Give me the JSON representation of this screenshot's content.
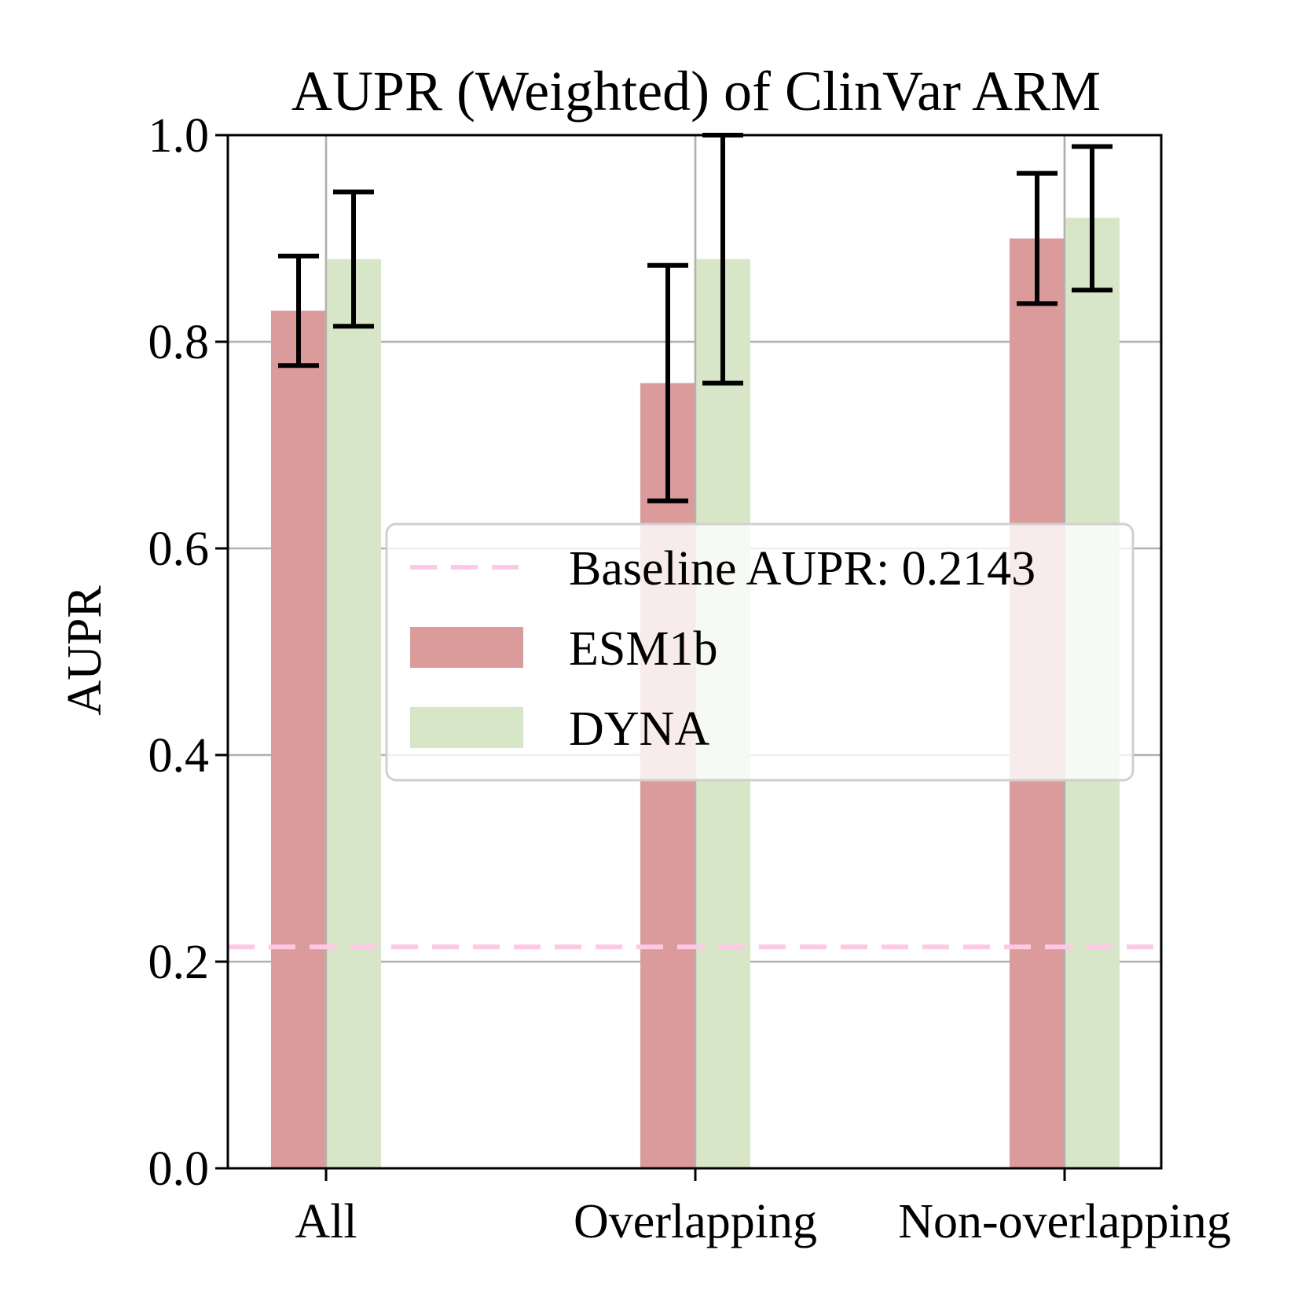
{
  "chart_data": {
    "type": "bar",
    "title": "AUPR (Weighted) of ClinVar ARM",
    "xlabel": "",
    "ylabel": "AUPR",
    "categories": [
      "All",
      "Overlapping",
      "Non-overlapping"
    ],
    "ylim": [
      0,
      1.0
    ],
    "yticks": [
      "0.0",
      "0.2",
      "0.4",
      "0.6",
      "0.8",
      "1.0"
    ],
    "grid": true,
    "legend_position": "center-right",
    "series": [
      {
        "name": "ESM1b",
        "color": "#dc9b9b",
        "values": [
          0.83,
          0.76,
          0.9
        ],
        "error_low": [
          0.777,
          0.646,
          0.837
        ],
        "error_high": [
          0.883,
          0.874,
          0.963
        ]
      },
      {
        "name": "DYNA",
        "color": "#d8e6c8",
        "values": [
          0.88,
          0.88,
          0.92
        ],
        "error_low": [
          0.815,
          0.76,
          0.85
        ],
        "error_high": [
          0.945,
          1.0,
          0.989
        ]
      }
    ],
    "baseline": {
      "label": "Baseline AUPR: 0.2143",
      "value": 0.2143,
      "color": "#ffc8e6"
    }
  }
}
